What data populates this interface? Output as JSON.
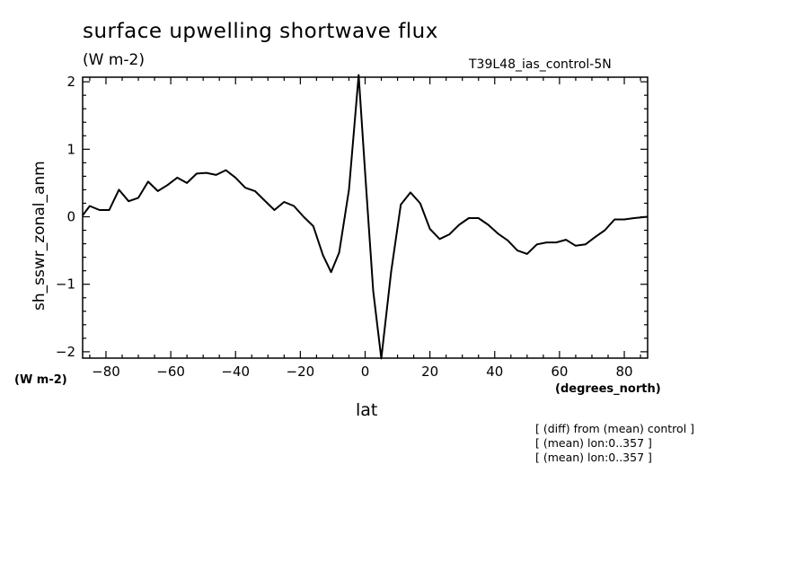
{
  "title": "surface upwelling shortwave flux",
  "units": "(W m-2)",
  "run_name": "T39L48_ias_control-5N",
  "y_units": "(W m-2)",
  "x_units": "(degrees_north)",
  "notes": [
    "[ (diff) from (mean) control ]",
    "[ (mean) lon:0..357 ]",
    "[ (mean) lon:0..357 ]"
  ],
  "chart_data": {
    "type": "line",
    "title": "surface upwelling shortwave flux",
    "xlabel": "lat",
    "ylabel": "sh_sswr_zonal_anm",
    "xlim": [
      -87.2,
      87.2
    ],
    "ylim": [
      -2.1,
      2.1
    ],
    "x_ticks": [
      -80,
      -60,
      -40,
      -20,
      0,
      20,
      40,
      60,
      80
    ],
    "x_tick_labels": [
      "−80",
      "−60",
      "−40",
      "−20",
      "0",
      "20",
      "40",
      "60",
      "80"
    ],
    "y_ticks": [
      -2,
      -1,
      0,
      1,
      2
    ],
    "y_tick_labels": [
      "−2",
      "−1",
      "0",
      "1",
      "2"
    ],
    "grid": false,
    "series": [
      {
        "color": "#000000",
        "x": [
          -87.2,
          -85,
          -82,
          -79,
          -76,
          -73,
          -70,
          -67,
          -64,
          -61,
          -58,
          -55,
          -52,
          -49,
          -46,
          -43,
          -40,
          -37,
          -34,
          -31,
          -28,
          -25,
          -22,
          -19,
          -16,
          -13,
          -10.5,
          -8,
          -5,
          -2,
          0,
          2.5,
          5,
          8,
          11,
          14,
          17,
          20,
          23,
          26,
          29,
          32,
          35,
          38,
          41,
          44,
          47,
          50,
          53,
          56,
          59,
          62,
          65,
          68,
          71,
          74,
          77,
          80,
          83,
          87.2
        ],
        "y": [
          0.02,
          0.16,
          0.1,
          0.1,
          0.4,
          0.23,
          0.28,
          0.52,
          0.38,
          0.47,
          0.58,
          0.5,
          0.64,
          0.65,
          0.62,
          0.69,
          0.58,
          0.43,
          0.38,
          0.24,
          0.1,
          0.22,
          0.16,
          0.0,
          -0.14,
          -0.57,
          -0.82,
          -0.53,
          0.4,
          2.1,
          0.65,
          -1.1,
          -2.1,
          -0.82,
          0.18,
          0.36,
          0.2,
          -0.18,
          -0.33,
          -0.26,
          -0.12,
          -0.02,
          -0.02,
          -0.12,
          -0.25,
          -0.35,
          -0.5,
          -0.55,
          -0.41,
          -0.38,
          -0.38,
          -0.34,
          -0.43,
          -0.41,
          -0.3,
          -0.2,
          -0.04,
          -0.04,
          -0.02,
          0.0
        ]
      }
    ]
  }
}
